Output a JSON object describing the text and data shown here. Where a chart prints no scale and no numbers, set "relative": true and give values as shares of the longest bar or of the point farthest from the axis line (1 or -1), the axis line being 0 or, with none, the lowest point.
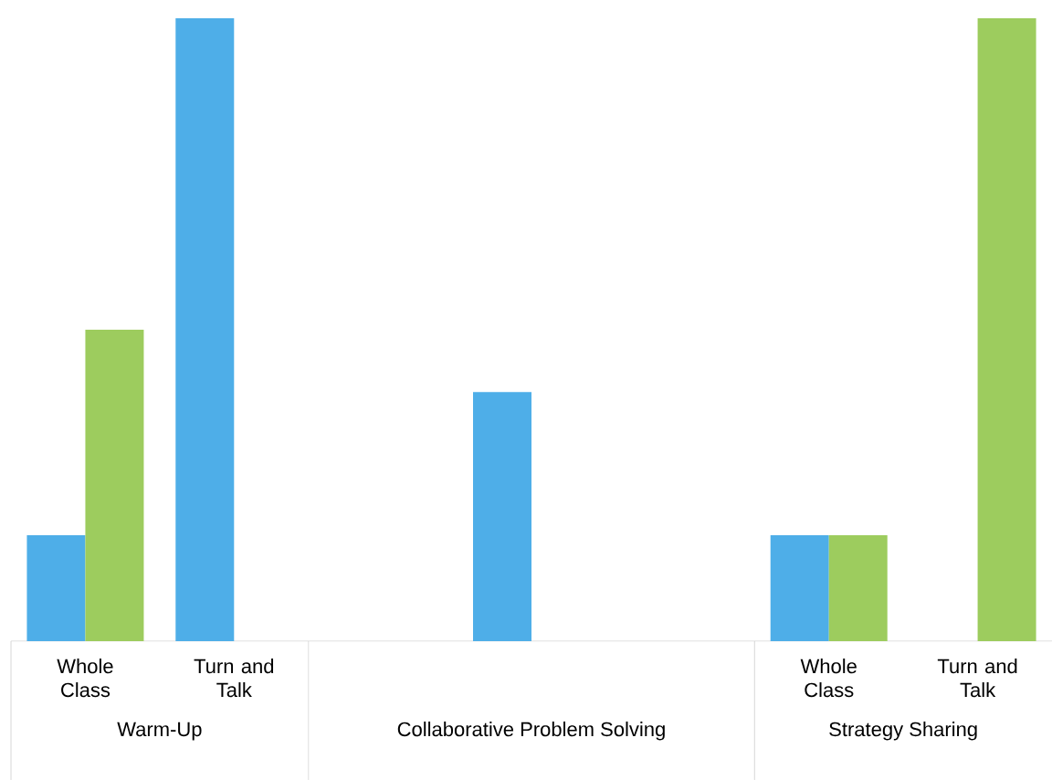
{
  "chart_data": {
    "type": "bar",
    "relative": true,
    "categories": [
      "Whole Class",
      "Turn and Talk",
      null,
      null,
      null,
      "Whole Class",
      "Turn and Talk"
    ],
    "series": [
      {
        "color": "#4eaee8",
        "values": [
          0.17,
          1,
          null,
          0.4,
          null,
          0.17,
          null
        ]
      },
      {
        "color": "#9dcc5e",
        "values": [
          0.5,
          null,
          null,
          null,
          null,
          0.17,
          1
        ]
      }
    ],
    "annotations": [
      "Warm-Up",
      "Collaborative Problem Solving",
      "Strategy Sharing"
    ]
  }
}
